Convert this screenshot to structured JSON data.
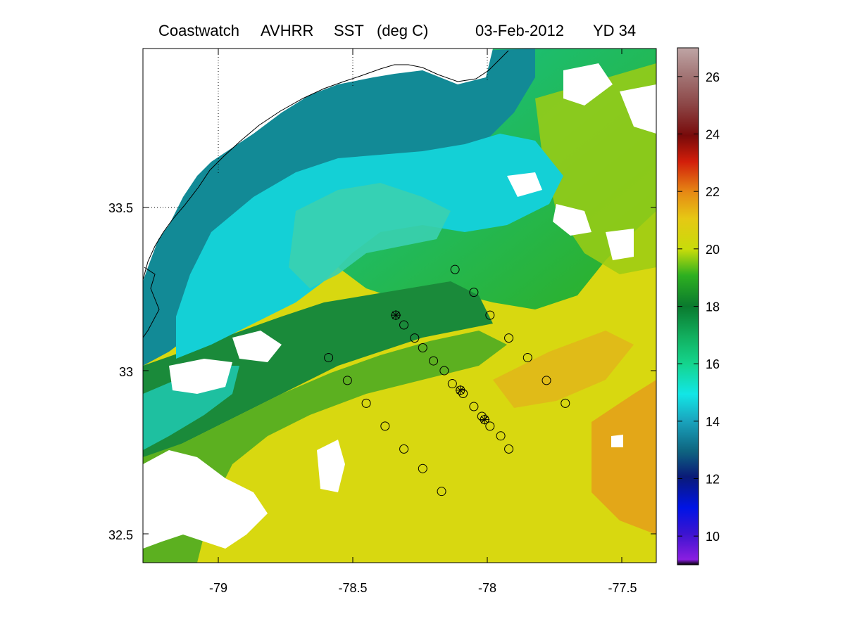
{
  "map": {
    "title_parts": [
      "Coastwatch",
      "AVHRR",
      "SST",
      "(deg C)",
      "03-Feb-2012",
      "YD 34"
    ],
    "lon_range": [
      -79.27,
      -77.4
    ],
    "lat_range": [
      32.42,
      33.95
    ],
    "x_ticks": [
      "-79",
      "-78.5",
      "-78",
      "-77.5"
    ],
    "y_ticks": [
      "33.5",
      "33",
      "32.5"
    ],
    "x_tick_values": [
      -79,
      -78.5,
      -78,
      -77.5
    ],
    "y_tick_values": [
      33.5,
      33,
      32.5
    ],
    "grid": "dotted lines at -79, -78.5, -78 longitude and 33.5 latitude over land",
    "land_color": "#ffffff",
    "cloud_color": "#ffffff",
    "stations": [
      {
        "lon": -78.12,
        "lat": 33.31,
        "marker": "circle"
      },
      {
        "lon": -78.05,
        "lat": 33.24,
        "marker": "circle"
      },
      {
        "lon": -77.99,
        "lat": 33.17,
        "marker": "circle"
      },
      {
        "lon": -77.92,
        "lat": 33.1,
        "marker": "circle"
      },
      {
        "lon": -77.85,
        "lat": 33.04,
        "marker": "circle"
      },
      {
        "lon": -77.78,
        "lat": 32.97,
        "marker": "circle"
      },
      {
        "lon": -77.71,
        "lat": 32.9,
        "marker": "circle"
      },
      {
        "lon": -78.59,
        "lat": 33.04,
        "marker": "circle"
      },
      {
        "lon": -78.52,
        "lat": 32.97,
        "marker": "circle"
      },
      {
        "lon": -78.45,
        "lat": 32.9,
        "marker": "circle"
      },
      {
        "lon": -78.38,
        "lat": 32.83,
        "marker": "circle"
      },
      {
        "lon": -78.31,
        "lat": 32.76,
        "marker": "circle"
      },
      {
        "lon": -78.24,
        "lat": 32.7,
        "marker": "circle"
      },
      {
        "lon": -78.17,
        "lat": 32.63,
        "marker": "circle"
      },
      {
        "lon": -78.34,
        "lat": 33.17,
        "marker": "asterisk"
      },
      {
        "lon": -78.31,
        "lat": 33.14,
        "marker": "circle"
      },
      {
        "lon": -78.27,
        "lat": 33.1,
        "marker": "circle"
      },
      {
        "lon": -78.24,
        "lat": 33.07,
        "marker": "circle"
      },
      {
        "lon": -78.2,
        "lat": 33.03,
        "marker": "circle"
      },
      {
        "lon": -78.16,
        "lat": 33.0,
        "marker": "circle"
      },
      {
        "lon": -78.13,
        "lat": 32.96,
        "marker": "circle"
      },
      {
        "lon": -78.1,
        "lat": 32.94,
        "marker": "asterisk"
      },
      {
        "lon": -78.09,
        "lat": 32.93,
        "marker": "circle"
      },
      {
        "lon": -78.05,
        "lat": 32.89,
        "marker": "circle"
      },
      {
        "lon": -78.02,
        "lat": 32.86,
        "marker": "circle"
      },
      {
        "lon": -78.01,
        "lat": 32.85,
        "marker": "asterisk"
      },
      {
        "lon": -77.99,
        "lat": 32.83,
        "marker": "circle"
      },
      {
        "lon": -77.95,
        "lat": 32.8,
        "marker": "circle"
      },
      {
        "lon": -77.92,
        "lat": 32.76,
        "marker": "circle"
      }
    ]
  },
  "colorbar": {
    "range": [
      9,
      27
    ],
    "tick_labels": [
      "26",
      "24",
      "22",
      "20",
      "18",
      "16",
      "14",
      "12",
      "10"
    ],
    "tick_values": [
      26,
      24,
      22,
      20,
      18,
      16,
      14,
      12,
      10
    ],
    "colormap": [
      {
        "v": 9,
        "c": "#8a1ee0"
      },
      {
        "v": 10,
        "c": "#3c14d0"
      },
      {
        "v": 11,
        "c": "#0014e6"
      },
      {
        "v": 12,
        "c": "#0a1a78"
      },
      {
        "v": 13,
        "c": "#0e6480"
      },
      {
        "v": 14,
        "c": "#1aa6bf"
      },
      {
        "v": 15,
        "c": "#12e6e6"
      },
      {
        "v": 16,
        "c": "#14d48c"
      },
      {
        "v": 17,
        "c": "#12b060"
      },
      {
        "v": 18,
        "c": "#0a7a2e"
      },
      {
        "v": 19,
        "c": "#2eb020"
      },
      {
        "v": 20,
        "c": "#c8dc0a"
      },
      {
        "v": 21,
        "c": "#e6c814"
      },
      {
        "v": 22,
        "c": "#e68a14"
      },
      {
        "v": 23,
        "c": "#d21e0a"
      },
      {
        "v": 24,
        "c": "#780a0a"
      },
      {
        "v": 25,
        "c": "#8c4646"
      },
      {
        "v": 26,
        "c": "#a47878"
      },
      {
        "v": 27,
        "c": "#bfa5a5"
      }
    ]
  }
}
